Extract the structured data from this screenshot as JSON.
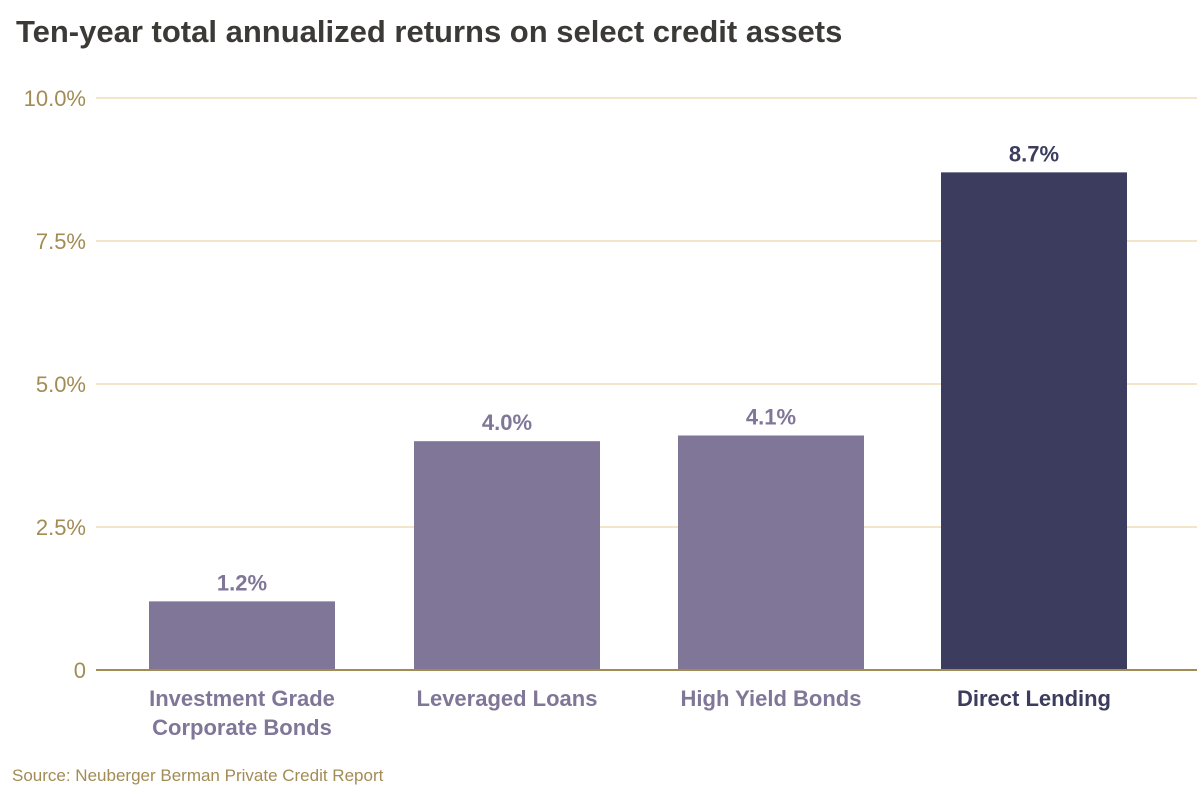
{
  "title": "Ten-year total annualized returns on select credit assets",
  "source": "Source: Neuberger Berman Private Credit Report",
  "colors": {
    "title": "#3b3a36",
    "axis_text": "#a28c55",
    "grid": "#efdcb8",
    "baseline": "#a28c55",
    "bar_default": "#807698",
    "bar_highlight": "#3c3d5e",
    "source": "#a28c55"
  },
  "chart_data": {
    "type": "bar",
    "title": "Ten-year total annualized returns on select credit assets",
    "xlabel": "",
    "ylabel": "",
    "ylim": [
      0,
      10
    ],
    "yticks": [
      0,
      2.5,
      5,
      7.5,
      10
    ],
    "ytick_labels": [
      "0",
      "2.5%",
      "5.0%",
      "7.5%",
      "10.0%"
    ],
    "grid": true,
    "categories": [
      [
        "Investment Grade",
        "Corporate Bonds"
      ],
      [
        "Leveraged Loans"
      ],
      [
        "High Yield Bonds"
      ],
      [
        "Direct Lending"
      ]
    ],
    "values": [
      1.2,
      4.0,
      4.1,
      8.7
    ],
    "data_labels": [
      "1.2%",
      "4.0%",
      "4.1%",
      "8.7%"
    ],
    "highlight": [
      false,
      false,
      false,
      true
    ]
  }
}
